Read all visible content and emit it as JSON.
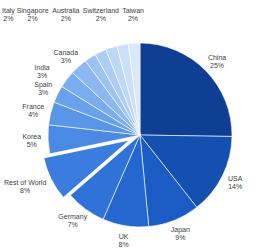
{
  "chart_data": {
    "type": "pie",
    "categories": [
      "China",
      "USA",
      "Japan",
      "UK",
      "Germany",
      "Rest of World",
      "Korea",
      "France",
      "Spain",
      "India",
      "Canada",
      "Italy",
      "Singapore",
      "Australia",
      "Switzerland",
      "Taiwan"
    ],
    "values": [
      25,
      14,
      9,
      8,
      7,
      8,
      5,
      4,
      3,
      3,
      3,
      2,
      2,
      2,
      2,
      2
    ],
    "value_labels": [
      "25%",
      "14%",
      "9%",
      "8%",
      "7%",
      "8%",
      "5%",
      "4%",
      "3%",
      "3%",
      "3%",
      "2%",
      "2%",
      "2%",
      "2%",
      "2%"
    ],
    "colors": [
      "#0e3f94",
      "#1450b0",
      "#1a5cc4",
      "#2467d0",
      "#2f72d8",
      "#3a7ddf",
      "#4a89e4",
      "#5a95e8",
      "#6aa1ec",
      "#7aadef",
      "#8bb8f1",
      "#9cc3f3",
      "#adcdf5",
      "#bcd7f7",
      "#cbe0f8",
      "#d9e8fa"
    ],
    "data_labels": true
  }
}
